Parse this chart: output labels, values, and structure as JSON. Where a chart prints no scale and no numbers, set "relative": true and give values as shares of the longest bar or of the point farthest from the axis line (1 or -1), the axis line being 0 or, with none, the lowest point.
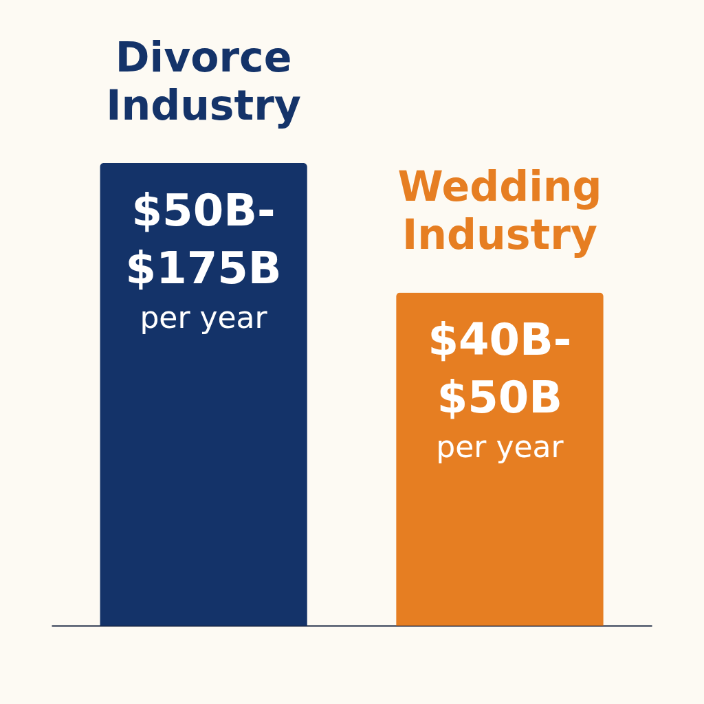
{
  "chart_data": {
    "type": "bar",
    "relative": true,
    "categories": [
      "Divorce Industry",
      "Wedding Industry"
    ],
    "values": [
      1,
      0.72
    ],
    "colors": [
      "#143369",
      "#e67e22"
    ],
    "annotations": [
      "$50B-",
      "$175B",
      "per year",
      "$40B-",
      "$50B",
      "per year"
    ]
  }
}
